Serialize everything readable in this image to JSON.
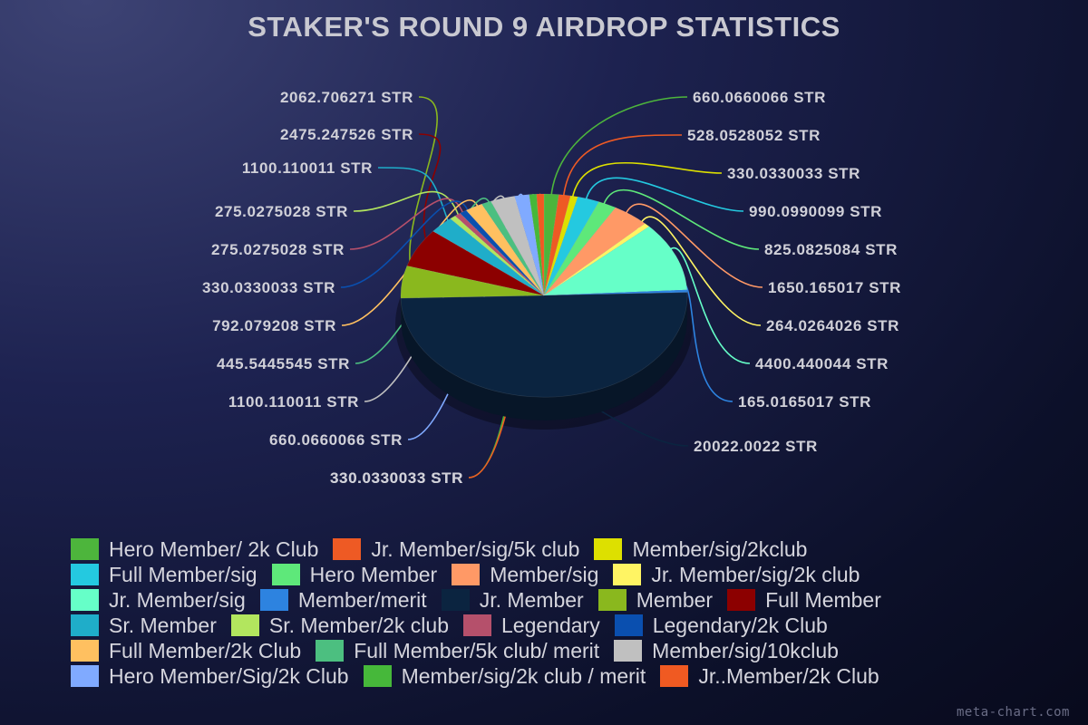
{
  "chart_data": {
    "type": "pie",
    "title": "STAKER'S ROUND 9 AIRDROP STATISTICS",
    "legend_position": "bottom",
    "slices": [
      {
        "name": "Hero Member/ 2k Club",
        "value": 660.0660066,
        "label": "660.0660066 STR",
        "color": "#4db53c"
      },
      {
        "name": "Jr. Member/sig/5k club",
        "value": 528.0528052,
        "label": "528.0528052 STR",
        "color": "#ee5a24"
      },
      {
        "name": "Member/sig/2kclub",
        "value": 330.0330033,
        "label": "330.0330033 STR",
        "color": "#dde000"
      },
      {
        "name": "Full Member/sig",
        "value": 990.0990099,
        "label": "990.0990099 STR",
        "color": "#24c9e0"
      },
      {
        "name": "Hero Member",
        "value": 825.0825084,
        "label": "825.0825084 STR",
        "color": "#5ee87a"
      },
      {
        "name": "Member/sig",
        "value": 1650.165017,
        "label": "1650.165017 STR",
        "color": "#ff9966"
      },
      {
        "name": "Jr. Member/sig/2k club",
        "value": 264.0264026,
        "label": "264.0264026 STR",
        "color": "#fff463"
      },
      {
        "name": "Jr. Member/sig",
        "value": 4400.440044,
        "label": "4400.440044 STR",
        "color": "#66ffc8"
      },
      {
        "name": "Member/merit",
        "value": 165.0165017,
        "label": "165.0165017 STR",
        "color": "#2d83e0"
      },
      {
        "name": "Jr. Member",
        "value": 20022.0022,
        "label": "20022.0022 STR",
        "color": "#0b2440"
      },
      {
        "name": "Member",
        "value": 2062.706271,
        "label": "2062.706271 STR",
        "color": "#8ab81e"
      },
      {
        "name": "Full Member",
        "value": 2475.247526,
        "label": "2475.247526 STR",
        "color": "#8c0000"
      },
      {
        "name": "Sr. Member",
        "value": 1100.110011,
        "label": "1100.110011 STR",
        "color": "#1fadc9"
      },
      {
        "name": "Sr. Member/2k club",
        "value": 275.0275028,
        "label": "275.0275028 STR",
        "color": "#b2e65e"
      },
      {
        "name": "Legendary",
        "value": 275.0275028,
        "label": "275.0275028 STR",
        "color": "#b5506b"
      },
      {
        "name": "Legendary/2k Club",
        "value": 330.0330033,
        "label": "330.0330033 STR",
        "color": "#0a4faf"
      },
      {
        "name": "Full Member/2k Club",
        "value": 792.079208,
        "label": "792.079208 STR",
        "color": "#ffc060"
      },
      {
        "name": "Full Member/5k club/ merit",
        "value": 445.5445545,
        "label": "445.5445545 STR",
        "color": "#4cbf80"
      },
      {
        "name": "Member/sig/10kclub",
        "value": 1100.110011,
        "label": "1100.110011 STR",
        "color": "#c0c0c0"
      },
      {
        "name": "Hero Member/Sig/2k Club",
        "value": 660.0660066,
        "label": "660.0660066 STR",
        "color": "#80aaff"
      },
      {
        "name": "Member/sig/2k club / merit",
        "value": 330.0330033,
        "label": "330.0330033 STR",
        "color": "#46b83a"
      },
      {
        "name": "Jr..Member/2k Club",
        "value": 330.0330033,
        "label": "330.0330033 STR",
        "color": "#f05a22"
      }
    ]
  },
  "watermark": "meta-chart.com"
}
